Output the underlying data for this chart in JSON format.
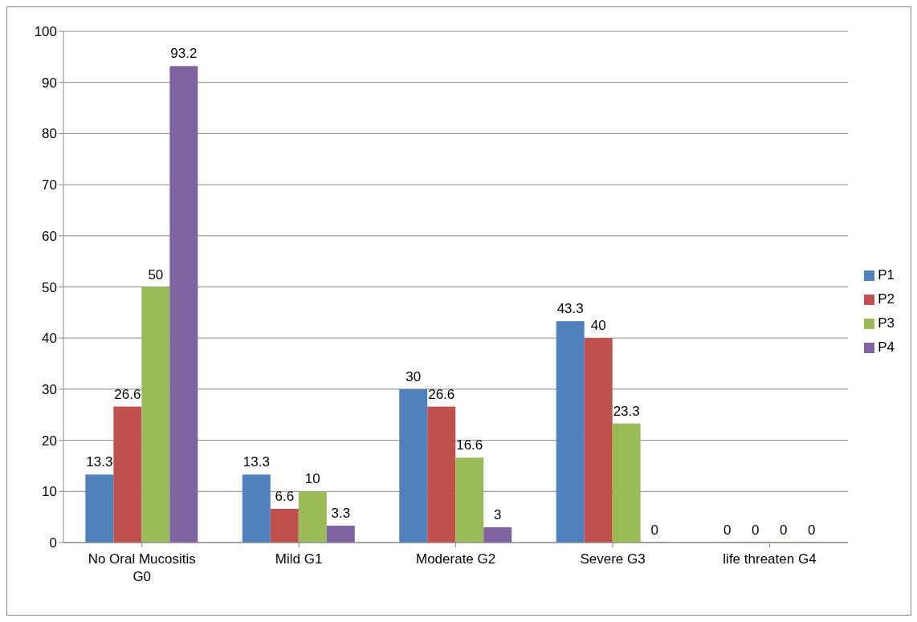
{
  "chart_data": {
    "type": "bar",
    "categories": [
      "No Oral Mucositis G0",
      "Mild G1",
      "Moderate G2",
      "Severe G3",
      "life threaten G4"
    ],
    "series": [
      {
        "name": "P1",
        "color": "#4f81bd",
        "values": [
          13.3,
          13.3,
          30,
          43.3,
          0
        ]
      },
      {
        "name": "P2",
        "color": "#c0504d",
        "values": [
          26.6,
          6.6,
          26.6,
          40,
          0
        ]
      },
      {
        "name": "P3",
        "color": "#9bbb59",
        "values": [
          50,
          10,
          16.6,
          23.3,
          0
        ]
      },
      {
        "name": "P4",
        "color": "#8064a2",
        "values": [
          93.2,
          3.3,
          3,
          0,
          0
        ]
      }
    ],
    "ylim": [
      0,
      100
    ],
    "yticks": [
      0,
      10,
      20,
      30,
      40,
      50,
      60,
      70,
      80,
      90,
      100
    ],
    "grid": "y",
    "legend": "right",
    "data_labels": true
  }
}
